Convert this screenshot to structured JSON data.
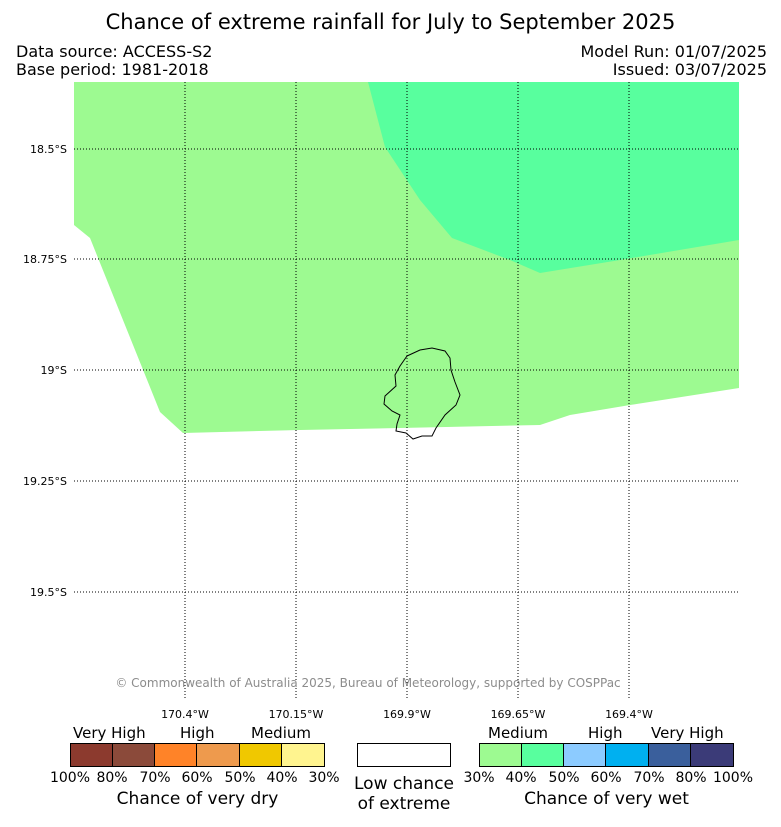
{
  "title": "Chance of extreme rainfall for July to September 2025",
  "info": {
    "data_source": "Data source: ACCESS-S2",
    "base_period": "Base period: 1981-2018",
    "model_run": "Model Run: 01/07/2025",
    "issued": "Issued: 03/07/2025"
  },
  "map": {
    "latitudes": [
      "18.5°S",
      "18.75°S",
      "19°S",
      "19.25°S",
      "19.5°S"
    ],
    "longitudes": [
      "170.4°W",
      "170.15°W",
      "169.9°W",
      "169.65°W",
      "169.4°W"
    ],
    "copyright": "© Commonwealth of Australia 2025, Bureau of Meteorology, supported by COSPPac",
    "regions": [
      {
        "name": "medium-wet-30-40",
        "color": "#9dfa91"
      },
      {
        "name": "medium-wet-40-50",
        "color": "#58ff9e"
      }
    ]
  },
  "legend": {
    "dry": {
      "headings": {
        "very_high": "Very High",
        "high": "High",
        "medium": "Medium"
      },
      "colors": [
        "#8c3a2e",
        "#8b4a3a",
        "#ff8328",
        "#ee9a4d",
        "#f0c800",
        "#fff48f"
      ],
      "ticks": [
        "100%",
        "80%",
        "70%",
        "60%",
        "50%",
        "40%",
        "30%"
      ],
      "caption": "Chance of very dry"
    },
    "low": {
      "line1": "Low chance",
      "line2": "of extreme"
    },
    "wet": {
      "headings": {
        "medium": "Medium",
        "high": "High",
        "very_high": "Very High"
      },
      "colors": [
        "#9dfa91",
        "#58ff9e",
        "#8ccbff",
        "#00b0f0",
        "#3a5f9c",
        "#3b3b78"
      ],
      "ticks": [
        "30%",
        "40%",
        "50%",
        "60%",
        "70%",
        "80%",
        "100%"
      ],
      "caption": "Chance of very wet"
    }
  }
}
